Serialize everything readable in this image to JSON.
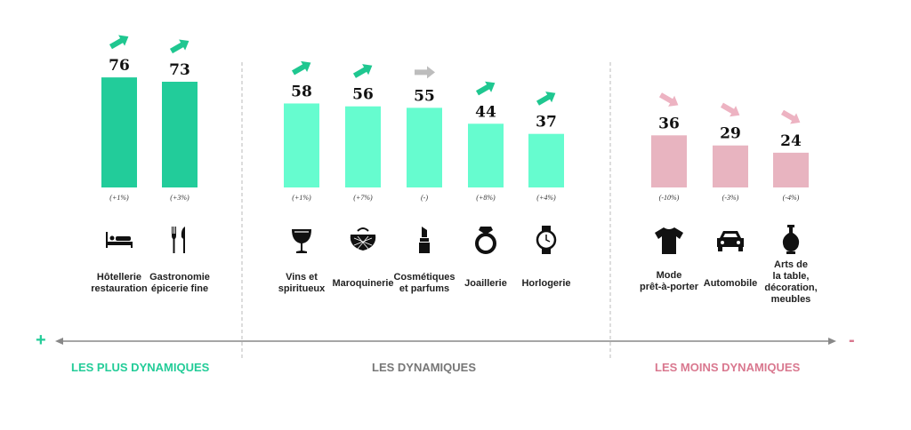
{
  "colors": {
    "plus": "#22CC9A",
    "mid": "#66FCCF",
    "minus": "#E8B4C0",
    "up_arrow": "#1FC790",
    "flat_arrow": "#BDBDBD",
    "down_arrow": "#EDB3C2",
    "group_plus_text": "#23CC98",
    "group_mid_text": "#777777",
    "group_minus_text": "#D9788F",
    "axis": "#888888"
  },
  "chart_data": {
    "type": "bar",
    "ylim": [
      0,
      80
    ],
    "categories": [
      {
        "label": [
          "Hôtellerie",
          "restauration"
        ],
        "value": 76,
        "change": "(+1%)",
        "trend": "up",
        "group": "plus",
        "icon": "bed-icon"
      },
      {
        "label": [
          "Gastronomie",
          "épicerie fine"
        ],
        "value": 73,
        "change": "(+3%)",
        "trend": "up",
        "group": "plus",
        "icon": "fork-knife-icon"
      },
      {
        "label": [
          "Vins et",
          "spiritueux"
        ],
        "value": 58,
        "change": "(+1%)",
        "trend": "up",
        "group": "mid",
        "icon": "wine-glass-icon"
      },
      {
        "label": [
          "Maroquinerie"
        ],
        "value": 56,
        "change": "(+7%)",
        "trend": "up",
        "group": "mid",
        "icon": "purse-icon"
      },
      {
        "label": [
          "Cosmétiques",
          "et parfums"
        ],
        "value": 55,
        "change": "(-)",
        "trend": "flat",
        "group": "mid",
        "icon": "lipstick-icon"
      },
      {
        "label": [
          "Joaillerie"
        ],
        "value": 44,
        "change": "(+8%)",
        "trend": "up",
        "group": "mid",
        "icon": "ring-icon"
      },
      {
        "label": [
          "Horlogerie"
        ],
        "value": 37,
        "change": "(+4%)",
        "trend": "up",
        "group": "mid",
        "icon": "watch-icon"
      },
      {
        "label": [
          "Mode",
          "prêt-à-porter"
        ],
        "value": 36,
        "change": "(-10%)",
        "trend": "down",
        "group": "minus",
        "icon": "tshirt-icon"
      },
      {
        "label": [
          "Automobile"
        ],
        "value": 29,
        "change": "(-3%)",
        "trend": "down",
        "group": "minus",
        "icon": "car-icon"
      },
      {
        "label": [
          "Arts de",
          "la table,",
          "décoration,",
          "meubles"
        ],
        "value": 24,
        "change": "(-4%)",
        "trend": "down",
        "group": "minus",
        "icon": "vase-icon"
      }
    ],
    "groups": [
      {
        "key": "plus",
        "label": "LES PLUS DYNAMIQUES"
      },
      {
        "key": "mid",
        "label": "LES DYNAMIQUES"
      },
      {
        "key": "minus",
        "label": "LES MOINS DYNAMIQUES"
      }
    ],
    "axis": {
      "left_sign": "+",
      "right_sign": "-"
    }
  }
}
